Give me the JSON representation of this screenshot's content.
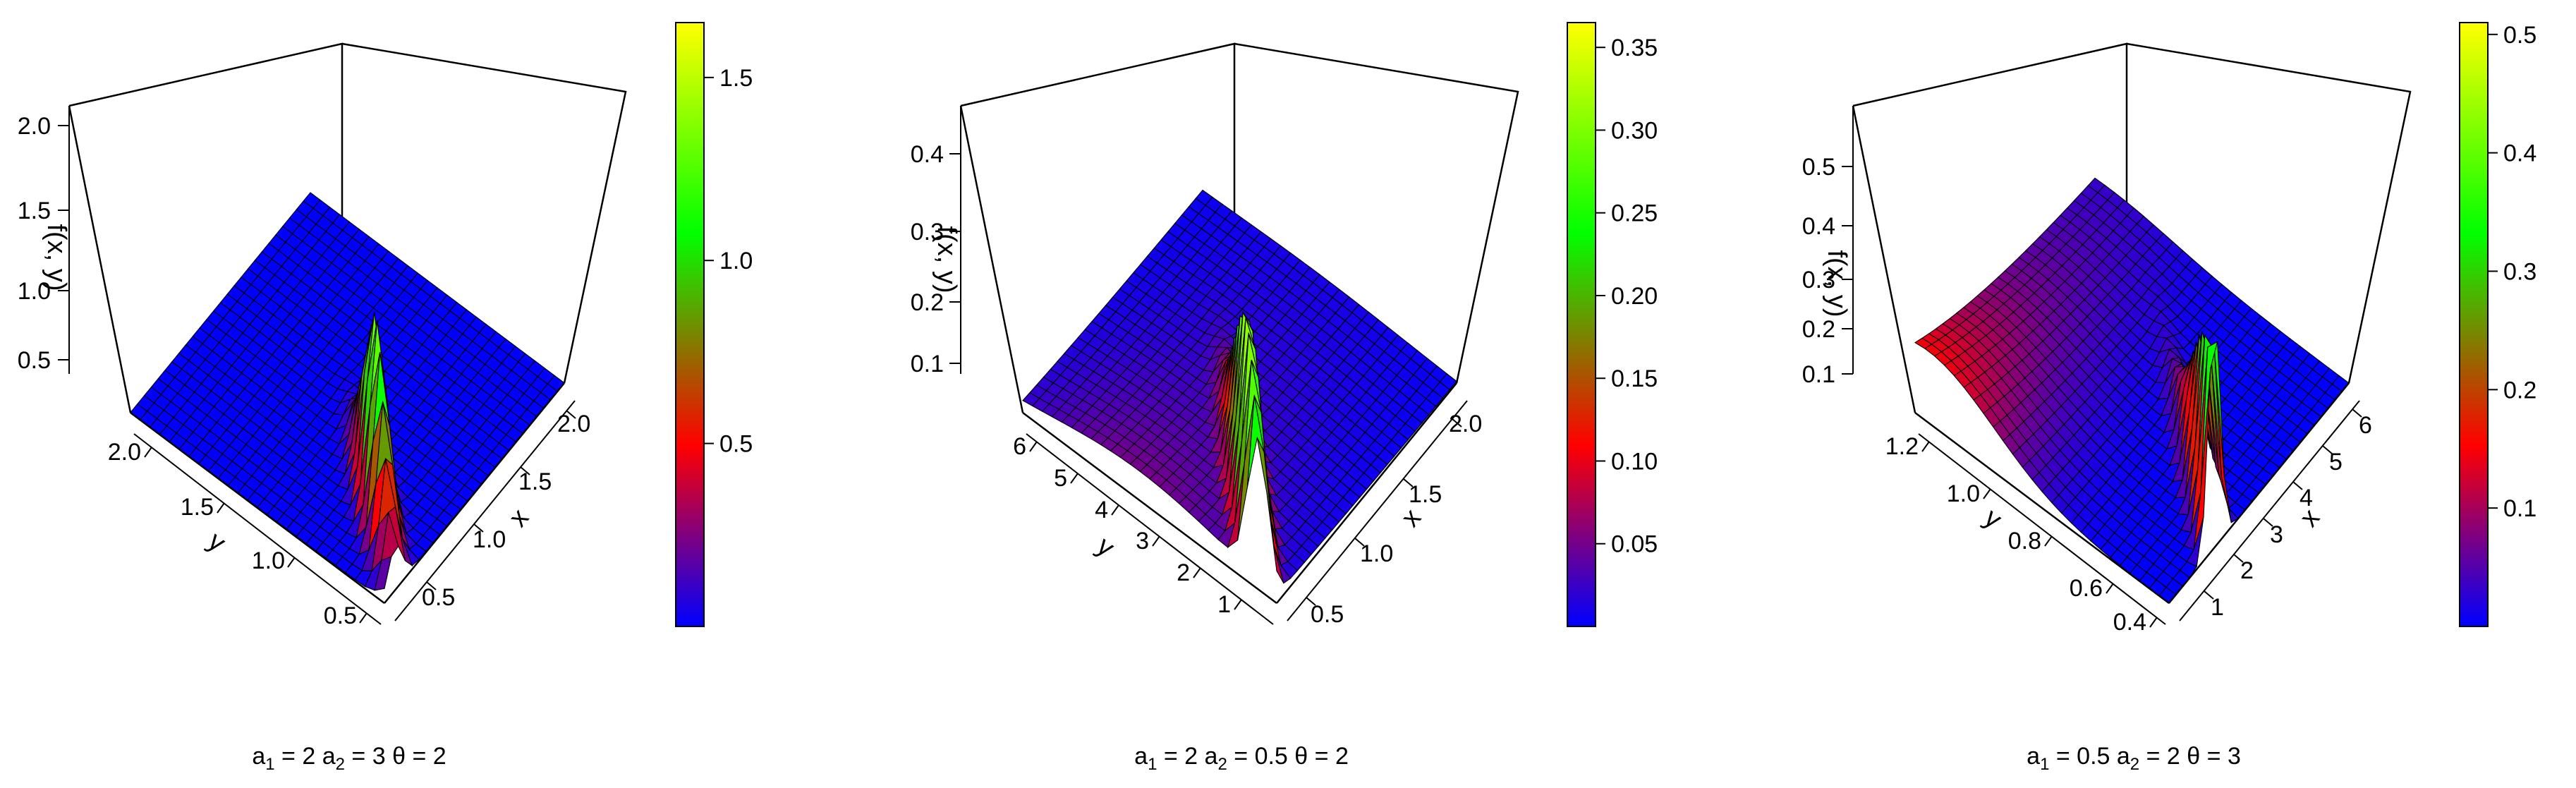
{
  "chart_data": [
    {
      "type": "surface3d",
      "caption": {
        "a1": "2",
        "a2": "3",
        "theta": "2"
      },
      "zlabel": "f(x, y)",
      "xlabel": "x",
      "ylabel": "y",
      "x_range": [
        0.1,
        2.2
      ],
      "y_range": [
        0.2,
        2.2
      ],
      "z_range": [
        0,
        2.2
      ],
      "x_ticks": [
        "0.5",
        "1.0",
        "1.5",
        "2.0"
      ],
      "y_ticks": [
        "0.5",
        "1.0",
        "1.5",
        "2.0"
      ],
      "z_ticks": [
        "0.5",
        "1.0",
        "1.5",
        "2.0"
      ],
      "colorbar": {
        "range": [
          0,
          1.65
        ],
        "ticks": [
          "0.5",
          "1.0",
          "1.5"
        ],
        "tick_values": [
          0.5,
          1.0,
          1.5
        ]
      },
      "peak": {
        "x": 0.6,
        "y": 0.6,
        "z": 1.6
      },
      "colormap": [
        "#0000ff",
        "#ff0000",
        "#00ff00",
        "#ffff00"
      ]
    },
    {
      "type": "surface3d",
      "caption": {
        "a1": "2",
        "a2": "0.5",
        "theta": "2"
      },
      "zlabel": "f(x, y)",
      "xlabel": "x",
      "ylabel": "y",
      "x_range": [
        0.2,
        2.2
      ],
      "y_range": [
        0.2,
        6.3
      ],
      "z_range": [
        0,
        0.47
      ],
      "x_ticks": [
        "0.5",
        "1.0",
        "1.5",
        "2.0"
      ],
      "y_ticks": [
        "1",
        "2",
        "3",
        "4",
        "5",
        "6"
      ],
      "z_ticks": [
        "0.1",
        "0.2",
        "0.3",
        "0.4"
      ],
      "colorbar": {
        "range": [
          0,
          0.365
        ],
        "ticks": [
          "0.05",
          "0.10",
          "0.15",
          "0.20",
          "0.25",
          "0.30",
          "0.35"
        ],
        "tick_values": [
          0.05,
          0.1,
          0.15,
          0.2,
          0.25,
          0.3,
          0.35
        ]
      },
      "peak": {
        "x": 0.5,
        "y": 1.5,
        "z": 0.36
      },
      "colormap": [
        "#0000ff",
        "#ff0000",
        "#00ff00",
        "#ffff00"
      ]
    },
    {
      "type": "surface3d",
      "caption": {
        "a1": "0.5",
        "a2": "2",
        "theta": "3"
      },
      "zlabel": "f(x, y)",
      "xlabel": "x",
      "ylabel": "y",
      "x_range": [
        0.2,
        6.5
      ],
      "y_range": [
        0.3,
        1.25
      ],
      "z_range": [
        0,
        0.57
      ],
      "x_ticks": [
        "1",
        "2",
        "3",
        "4",
        "5",
        "6"
      ],
      "y_ticks": [
        "0.4",
        "0.6",
        "0.8",
        "1.0",
        "1.2"
      ],
      "z_ticks": [
        "0.1",
        "0.2",
        "0.3",
        "0.4",
        "0.5"
      ],
      "colorbar": {
        "range": [
          0,
          0.51
        ],
        "ticks": [
          "0.1",
          "0.2",
          "0.3",
          "0.4",
          "0.5"
        ],
        "tick_values": [
          0.1,
          0.2,
          0.3,
          0.4,
          0.5
        ]
      },
      "peak": {
        "x": 1.5,
        "y": 0.5,
        "z": 0.5
      },
      "colormap": [
        "#0000ff",
        "#ff0000",
        "#00ff00",
        "#ffff00"
      ]
    }
  ]
}
